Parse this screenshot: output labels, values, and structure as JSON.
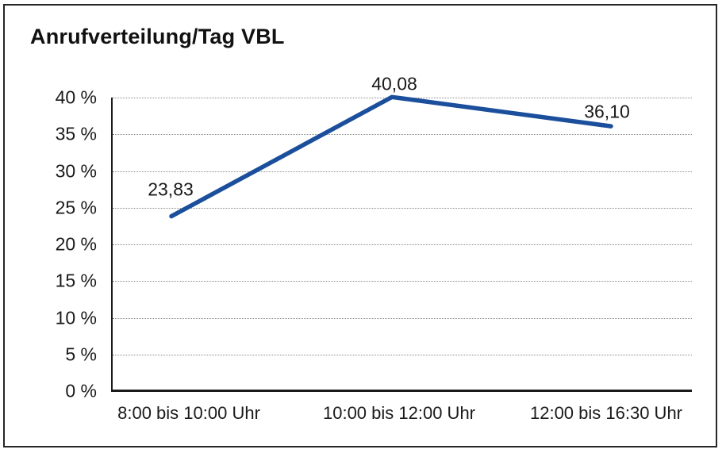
{
  "title": "Anrufverteilung/Tag VBL",
  "colors": {
    "line": "#1B4F9C",
    "grid": "#8A8A8A",
    "axis": "#1A1A1A",
    "text": "#1A1A1A",
    "background": "#FFFFFF",
    "frame_border": "#262626"
  },
  "chart_data": {
    "type": "line",
    "title": "Anrufverteilung/Tag VBL",
    "categories": [
      "8:00 bis 10:00 Uhr",
      "10:00 bis 12:00 Uhr",
      "12:00 bis 16:30 Uhr"
    ],
    "values": [
      23.83,
      40.08,
      36.1
    ],
    "data_labels": [
      "23,83",
      "40,08",
      "36,10"
    ],
    "y_ticks": [
      {
        "value": 0,
        "label": "0 %"
      },
      {
        "value": 5,
        "label": "5 %"
      },
      {
        "value": 10,
        "label": "10 %"
      },
      {
        "value": 15,
        "label": "15 %"
      },
      {
        "value": 20,
        "label": "20 %"
      },
      {
        "value": 25,
        "label": "25 %"
      },
      {
        "value": 30,
        "label": "30 %"
      },
      {
        "value": 35,
        "label": "35 %"
      },
      {
        "value": 40,
        "label": "40 %"
      }
    ],
    "ylim": [
      0,
      40
    ],
    "xlabel": "",
    "ylabel": "",
    "grid": "horizontal-dotted",
    "legend": "none"
  }
}
